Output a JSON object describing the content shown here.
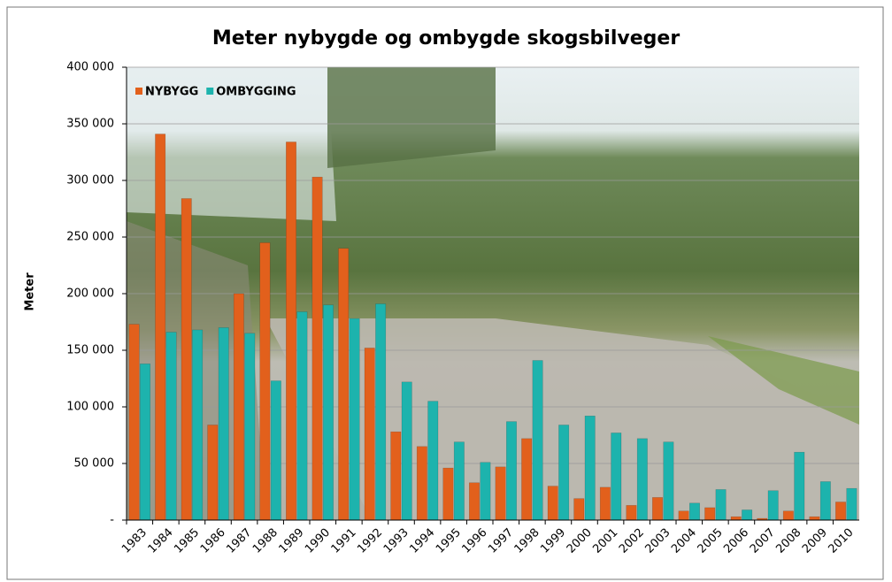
{
  "chart_data": {
    "type": "bar",
    "title": "Meter nybygde og ombygde skogsbilveger",
    "y_label": "Meter",
    "categories": [
      "1983",
      "1984",
      "1985",
      "1986",
      "1987",
      "1988",
      "1989",
      "1990",
      "1991",
      "1992",
      "1993",
      "1994",
      "1995",
      "1996",
      "1997",
      "1998",
      "1999",
      "2000",
      "2001",
      "2002",
      "2003",
      "2004",
      "2005",
      "2006",
      "2007",
      "2008",
      "2009",
      "2010"
    ],
    "series": [
      {
        "name": "NYBYGG",
        "color": "#e2601c",
        "values": [
          173000,
          341000,
          284000,
          84000,
          200000,
          245000,
          334000,
          303000,
          240000,
          152000,
          78000,
          65000,
          46000,
          33000,
          47000,
          72000,
          30000,
          19000,
          29000,
          13000,
          20000,
          8000,
          11000,
          3000,
          1500,
          8000,
          3000,
          16000
        ]
      },
      {
        "name": "OMBYGGING",
        "color": "#1db3ad",
        "values": [
          138000,
          166000,
          168000,
          170000,
          165000,
          123000,
          184000,
          190000,
          178000,
          191000,
          122000,
          105000,
          69000,
          51000,
          87000,
          141000,
          84000,
          92000,
          77000,
          72000,
          69000,
          15000,
          27000,
          9000,
          26000,
          60000,
          34000,
          28000
        ]
      }
    ],
    "ylim": [
      0,
      400000
    ],
    "yticks": [
      {
        "value": 0,
        "label": "-"
      },
      {
        "value": 50000,
        "label": "50 000"
      },
      {
        "value": 100000,
        "label": "100 000"
      },
      {
        "value": 150000,
        "label": "150 000"
      },
      {
        "value": 200000,
        "label": "200 000"
      },
      {
        "value": 250000,
        "label": "250 000"
      },
      {
        "value": 300000,
        "label": "300 000"
      },
      {
        "value": 350000,
        "label": "350 000"
      },
      {
        "value": 400000,
        "label": "400 000"
      }
    ],
    "grid": true,
    "legend": "top-left"
  }
}
